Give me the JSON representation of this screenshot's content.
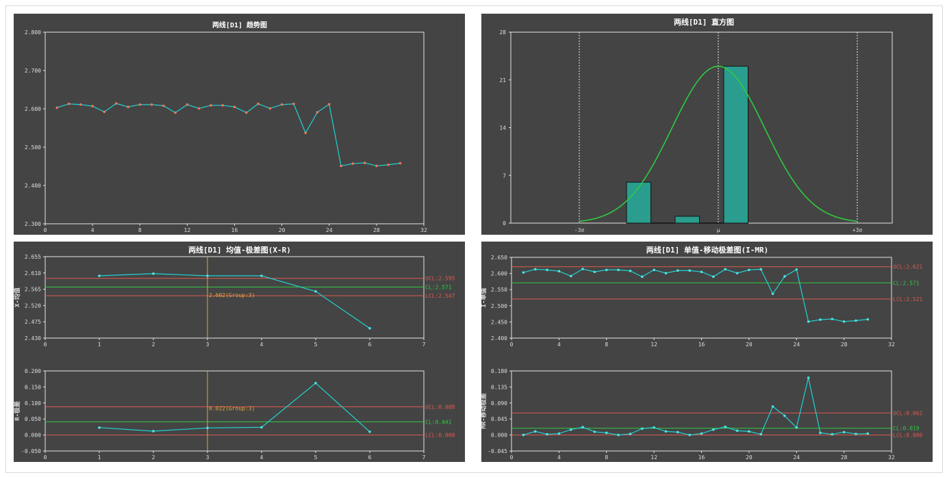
{
  "chart_data": [
    {
      "type": "line",
      "title": "两线[D1] 趋势图",
      "x": [
        1,
        2,
        3,
        4,
        5,
        6,
        7,
        8,
        9,
        10,
        11,
        12,
        13,
        14,
        15,
        16,
        17,
        18,
        19,
        20,
        21,
        22,
        23,
        24,
        25,
        26,
        27,
        28,
        29,
        30
      ],
      "series": [
        {
          "values": [
            2.603,
            2.613,
            2.611,
            2.607,
            2.592,
            2.614,
            2.605,
            2.611,
            2.611,
            2.608,
            2.59,
            2.611,
            2.601,
            2.609,
            2.609,
            2.605,
            2.59,
            2.613,
            2.601,
            2.611,
            2.613,
            2.537,
            2.591,
            2.612,
            2.451,
            2.457,
            2.459,
            2.451,
            2.454,
            2.458
          ]
        }
      ],
      "xlim": [
        0,
        32
      ],
      "ylim": [
        2.3,
        2.8
      ],
      "xticks": [
        "0",
        "4",
        "8",
        "12",
        "16",
        "20",
        "24",
        "28",
        "32"
      ],
      "yticks": [
        "2.300",
        "2.400",
        "2.500",
        "2.600",
        "2.700",
        "2.800"
      ],
      "line_color": "#22d3d3",
      "marker_color": "#e8775a"
    },
    {
      "type": "bar",
      "title": "两线[D1] 直方图",
      "values": [
        6,
        0,
        1,
        0,
        23
      ],
      "ylim": [
        0,
        28
      ],
      "yticks": [
        "0",
        "7",
        "14",
        "21",
        "28"
      ],
      "xlabels": [
        "-3σ",
        "μ",
        "+3σ"
      ],
      "bar_color": "#2a9d8f",
      "curve_color": "#2ecc40"
    },
    {
      "type": "line",
      "title": "两线[D1] 均值-极差图(X-R)",
      "subcharts": [
        {
          "ylabel": "X-均值",
          "x": [
            1,
            2,
            3,
            4,
            5,
            6
          ],
          "values": [
            2.602,
            2.608,
            2.602,
            2.602,
            2.559,
            2.457
          ],
          "xlim": [
            0,
            7
          ],
          "ylim": [
            2.43,
            2.655
          ],
          "xticks": [
            "0",
            "1",
            "2",
            "3",
            "4",
            "5",
            "6",
            "7"
          ],
          "yticks": [
            "2.430",
            "2.475",
            "2.520",
            "2.565",
            "2.610",
            "2.655"
          ],
          "limits": [
            {
              "label": "UCL:2.595",
              "value": 2.595,
              "color": "#e05a4f"
            },
            {
              "label": "CL:2.571",
              "value": 2.571,
              "color": "#2ecc40"
            },
            {
              "label": "LCL:2.547",
              "value": 2.547,
              "color": "#e05a4f"
            }
          ],
          "cursor_x": 3,
          "cursor_label": "2.602(Group:3)"
        },
        {
          "ylabel": "R-极差",
          "x": [
            1,
            2,
            3,
            4,
            5,
            6
          ],
          "values": [
            0.023,
            0.012,
            0.022,
            0.024,
            0.162,
            0.01
          ],
          "xlim": [
            0,
            7
          ],
          "ylim": [
            -0.05,
            0.2
          ],
          "xticks": [
            "0",
            "1",
            "2",
            "3",
            "4",
            "5",
            "6",
            "7"
          ],
          "yticks": [
            "-0.050",
            "0.000",
            "0.050",
            "0.100",
            "0.150",
            "0.200"
          ],
          "limits": [
            {
              "label": "UCL:0.088",
              "value": 0.088,
              "color": "#e05a4f"
            },
            {
              "label": "CL:0.041",
              "value": 0.041,
              "color": "#2ecc40"
            },
            {
              "label": "LCL:0.000",
              "value": 0.0,
              "color": "#e05a4f"
            }
          ],
          "cursor_x": 3,
          "cursor_label": "0.022(Group:3)"
        }
      ]
    },
    {
      "type": "line",
      "title": "两线[D1] 单值-移动极差图(I-MR)",
      "subcharts": [
        {
          "ylabel": "I-单值",
          "x": [
            1,
            2,
            3,
            4,
            5,
            6,
            7,
            8,
            9,
            10,
            11,
            12,
            13,
            14,
            15,
            16,
            17,
            18,
            19,
            20,
            21,
            22,
            23,
            24,
            25,
            26,
            27,
            28,
            29,
            30
          ],
          "values": [
            2.603,
            2.613,
            2.611,
            2.607,
            2.592,
            2.614,
            2.605,
            2.611,
            2.611,
            2.608,
            2.59,
            2.611,
            2.601,
            2.609,
            2.609,
            2.605,
            2.59,
            2.613,
            2.601,
            2.611,
            2.613,
            2.537,
            2.591,
            2.612,
            2.451,
            2.457,
            2.459,
            2.451,
            2.454,
            2.458
          ],
          "xlim": [
            0,
            32
          ],
          "ylim": [
            2.4,
            2.65
          ],
          "xticks": [
            "0",
            "4",
            "8",
            "12",
            "16",
            "20",
            "24",
            "28",
            "32"
          ],
          "yticks": [
            "2.400",
            "2.450",
            "2.500",
            "2.550",
            "2.600",
            "2.650"
          ],
          "limits": [
            {
              "label": "UCL:2.621",
              "value": 2.621,
              "color": "#e05a4f"
            },
            {
              "label": "CL:2.571",
              "value": 2.571,
              "color": "#2ecc40"
            },
            {
              "label": "LCL:2.521",
              "value": 2.521,
              "color": "#e05a4f"
            }
          ]
        },
        {
          "ylabel": "MR-移动极差",
          "x": [
            1,
            2,
            3,
            4,
            5,
            6,
            7,
            8,
            9,
            10,
            11,
            12,
            13,
            14,
            15,
            16,
            17,
            18,
            19,
            20,
            21,
            22,
            23,
            24,
            25,
            26,
            27,
            28,
            29,
            30
          ],
          "values": [
            0.0,
            0.01,
            0.002,
            0.004,
            0.015,
            0.022,
            0.009,
            0.006,
            0.0,
            0.003,
            0.018,
            0.021,
            0.01,
            0.008,
            0.0,
            0.004,
            0.015,
            0.023,
            0.012,
            0.01,
            0.002,
            0.08,
            0.054,
            0.021,
            0.161,
            0.006,
            0.002,
            0.008,
            0.003,
            0.004
          ],
          "xlim": [
            0,
            32
          ],
          "ylim": [
            -0.045,
            0.18
          ],
          "xticks": [
            "0",
            "4",
            "8",
            "12",
            "16",
            "20",
            "24",
            "28",
            "32"
          ],
          "yticks": [
            "-0.045",
            "0.000",
            "0.045",
            "0.090",
            "0.135",
            "0.180"
          ],
          "limits": [
            {
              "label": "UCL:0.062",
              "value": 0.062,
              "color": "#e05a4f"
            },
            {
              "label": "CL:0.019",
              "value": 0.019,
              "color": "#2ecc40"
            },
            {
              "label": "LCL:0.000",
              "value": 0.0,
              "color": "#e05a4f"
            }
          ]
        }
      ]
    }
  ]
}
